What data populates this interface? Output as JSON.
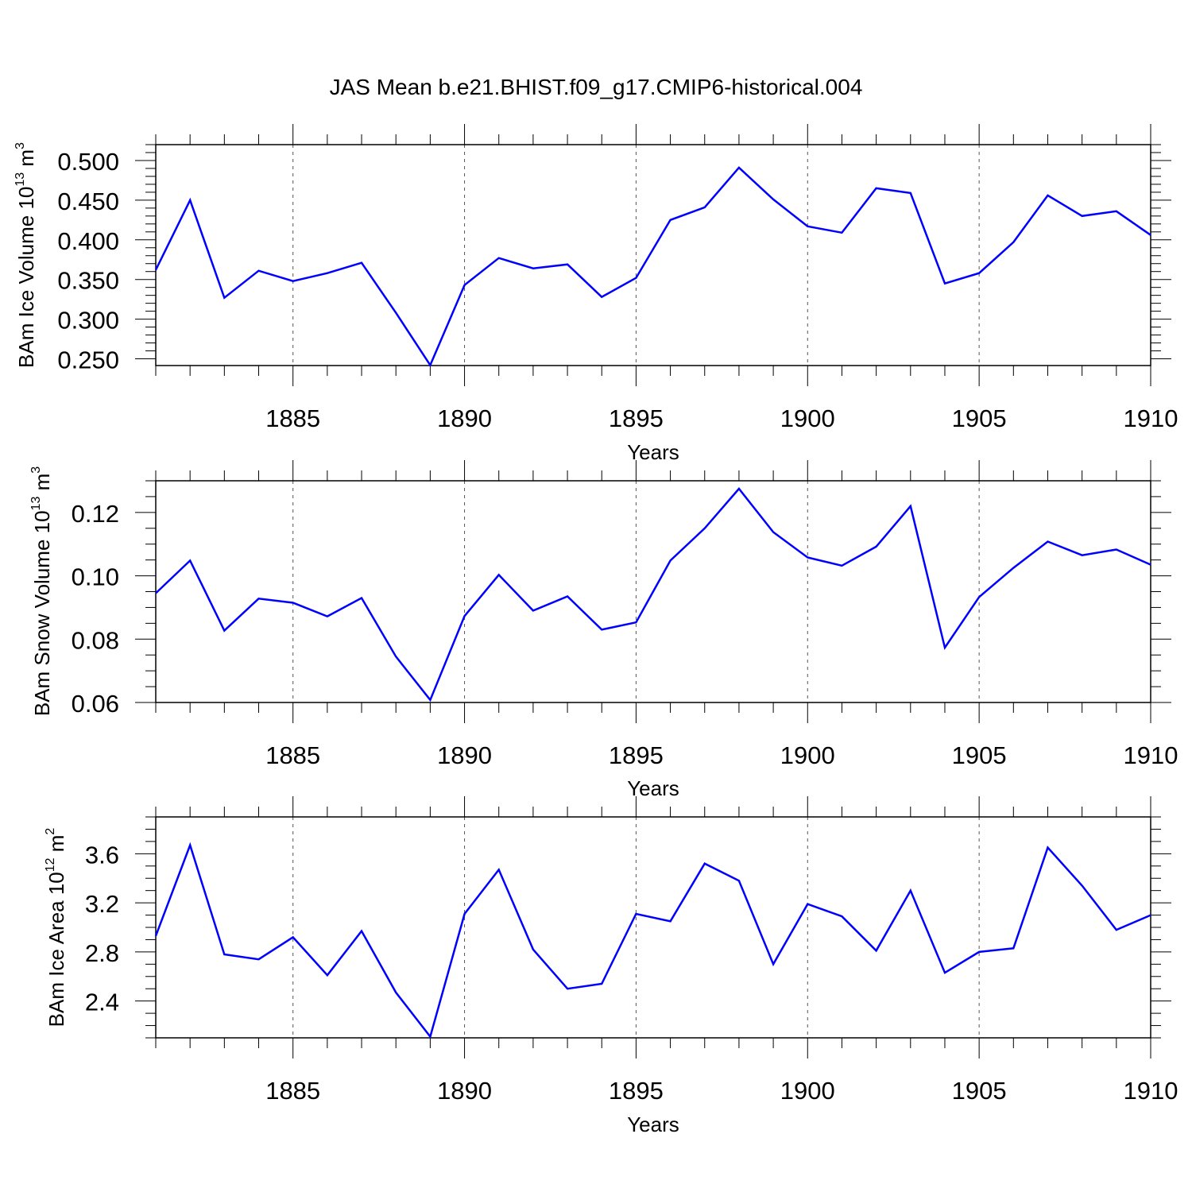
{
  "title": "JAS Mean b.e21.BHIST.f09_g17.CMIP6-historical.004",
  "colors": {
    "line": "#0000ff",
    "axis": "#000000",
    "grid": "#555555"
  },
  "chart_data": [
    {
      "type": "line",
      "ylabel": {
        "text": "BAm Ice Volume 10",
        "sup": "13",
        "unit": " m",
        "unit_sup": "3"
      },
      "xlabel": "Years",
      "xlim": [
        1881,
        1910
      ],
      "ylim": [
        0.2415,
        0.52
      ],
      "yticks": [
        0.25,
        0.3,
        0.35,
        0.4,
        0.45,
        0.5
      ],
      "ytick_labels": [
        "0.250",
        "0.300",
        "0.350",
        "0.400",
        "0.450",
        "0.500"
      ],
      "yminor_step": 0.01,
      "xticks": [
        1885,
        1890,
        1895,
        1900,
        1905,
        1910
      ],
      "xtick_labels": [
        "1885",
        "1890",
        "1895",
        "1900",
        "1905",
        "1910"
      ],
      "grid": "vertical dashed at major x ticks",
      "series": [
        {
          "x": [
            1881,
            1882,
            1883,
            1884,
            1885,
            1886,
            1887,
            1888,
            1889,
            1890,
            1891,
            1892,
            1893,
            1894,
            1895,
            1896,
            1897,
            1898,
            1899,
            1900,
            1901,
            1902,
            1903,
            1904,
            1905,
            1906,
            1907,
            1908,
            1909,
            1910
          ],
          "values": [
            0.362,
            0.45,
            0.327,
            0.361,
            0.348,
            0.358,
            0.371,
            0.308,
            0.242,
            0.343,
            0.377,
            0.364,
            0.369,
            0.328,
            0.352,
            0.425,
            0.441,
            0.491,
            0.451,
            0.417,
            0.409,
            0.465,
            0.459,
            0.345,
            0.358,
            0.397,
            0.456,
            0.43,
            0.436,
            0.406
          ]
        }
      ]
    },
    {
      "type": "line",
      "ylabel": {
        "text": "BAm Snow Volume 10",
        "sup": "13",
        "unit": " m",
        "unit_sup": "3"
      },
      "xlabel": "Years",
      "xlim": [
        1881,
        1910
      ],
      "ylim": [
        0.06,
        0.13
      ],
      "yticks": [
        0.06,
        0.08,
        0.1,
        0.12
      ],
      "ytick_labels": [
        "0.06",
        "0.08",
        "0.10",
        "0.12"
      ],
      "yminor_step": 0.005,
      "xticks": [
        1885,
        1890,
        1895,
        1900,
        1905,
        1910
      ],
      "xtick_labels": [
        "1885",
        "1890",
        "1895",
        "1900",
        "1905",
        "1910"
      ],
      "grid": "vertical dashed at major x ticks",
      "series": [
        {
          "x": [
            1881,
            1882,
            1883,
            1884,
            1885,
            1886,
            1887,
            1888,
            1889,
            1890,
            1891,
            1892,
            1893,
            1894,
            1895,
            1896,
            1897,
            1898,
            1899,
            1900,
            1901,
            1902,
            1903,
            1904,
            1905,
            1906,
            1907,
            1908,
            1909,
            1910
          ],
          "values": [
            0.0945,
            0.1048,
            0.0827,
            0.0928,
            0.0915,
            0.0872,
            0.093,
            0.0745,
            0.0608,
            0.0873,
            0.1003,
            0.089,
            0.0935,
            0.083,
            0.0853,
            0.1048,
            0.115,
            0.1275,
            0.1138,
            0.1058,
            0.1032,
            0.1092,
            0.122,
            0.0773,
            0.0933,
            0.1025,
            0.1108,
            0.1065,
            0.1083,
            0.1035
          ]
        }
      ]
    },
    {
      "type": "line",
      "ylabel": {
        "text": "BAm Ice Area 10",
        "sup": "12",
        "unit": " m",
        "unit_sup": "2"
      },
      "xlabel": "Years",
      "xlim": [
        1881,
        1910
      ],
      "ylim": [
        2.1,
        3.9
      ],
      "yticks": [
        2.4,
        2.8,
        3.2,
        3.6
      ],
      "ytick_labels": [
        "2.4",
        "2.8",
        "3.2",
        "3.6"
      ],
      "yminor_step": 0.1,
      "xticks": [
        1885,
        1890,
        1895,
        1900,
        1905,
        1910
      ],
      "xtick_labels": [
        "1885",
        "1890",
        "1895",
        "1900",
        "1905",
        "1910"
      ],
      "grid": "vertical dashed at major x ticks",
      "series": [
        {
          "x": [
            1881,
            1882,
            1883,
            1884,
            1885,
            1886,
            1887,
            1888,
            1889,
            1890,
            1891,
            1892,
            1893,
            1894,
            1895,
            1896,
            1897,
            1898,
            1899,
            1900,
            1901,
            1902,
            1903,
            1904,
            1905,
            1906,
            1907,
            1908,
            1909,
            1910
          ],
          "values": [
            2.93,
            3.67,
            2.78,
            2.74,
            2.92,
            2.61,
            2.97,
            2.47,
            2.11,
            3.11,
            3.47,
            2.82,
            2.5,
            2.54,
            3.11,
            3.05,
            3.52,
            3.38,
            2.7,
            3.19,
            3.09,
            2.81,
            3.3,
            2.63,
            2.8,
            2.83,
            3.65,
            3.34,
            2.98,
            3.1
          ]
        }
      ]
    }
  ]
}
